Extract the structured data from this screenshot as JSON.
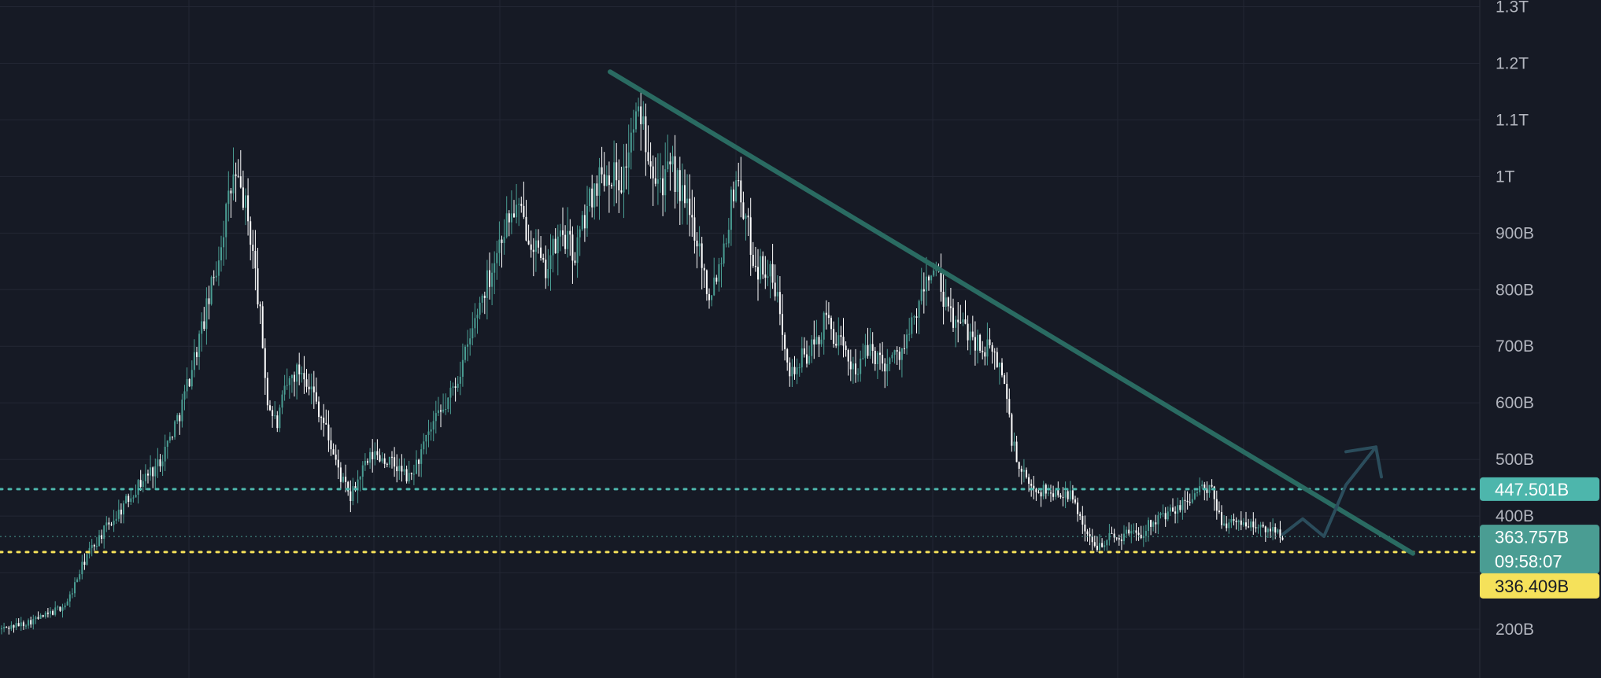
{
  "chart_data": {
    "type": "candlestick",
    "title": "",
    "xlabel": "",
    "ylabel": "",
    "ylim": [
      160000000000,
      1320000000000
    ],
    "grid": true,
    "y_ticks": [
      {
        "value": 200000000000,
        "label": "200B"
      },
      {
        "value": 400000000000,
        "label": "400B"
      },
      {
        "value": 500000000000,
        "label": "500B"
      },
      {
        "value": 600000000000,
        "label": "600B"
      },
      {
        "value": 700000000000,
        "label": "700B"
      },
      {
        "value": 800000000000,
        "label": "800B"
      },
      {
        "value": 900000000000,
        "label": "900B"
      },
      {
        "value": 1000000000000,
        "label": "1T"
      },
      {
        "value": 1100000000000,
        "label": "1.1T"
      },
      {
        "value": 1200000000000,
        "label": "1.2T"
      },
      {
        "value": 1300000000000,
        "label": "1.3T"
      }
    ],
    "price_anchors": [
      [
        0,
        200
      ],
      [
        30,
        210
      ],
      [
        60,
        225
      ],
      [
        85,
        245
      ],
      [
        110,
        330
      ],
      [
        130,
        370
      ],
      [
        150,
        405
      ],
      [
        170,
        445
      ],
      [
        185,
        470
      ],
      [
        200,
        490
      ],
      [
        215,
        535
      ],
      [
        230,
        590
      ],
      [
        245,
        670
      ],
      [
        260,
        750
      ],
      [
        275,
        840
      ],
      [
        285,
        920
      ],
      [
        297,
        1000
      ],
      [
        310,
        960
      ],
      [
        320,
        880
      ],
      [
        330,
        760
      ],
      [
        340,
        600
      ],
      [
        352,
        560
      ],
      [
        362,
        620
      ],
      [
        372,
        650
      ],
      [
        385,
        660
      ],
      [
        400,
        610
      ],
      [
        415,
        550
      ],
      [
        430,
        480
      ],
      [
        445,
        430
      ],
      [
        460,
        480
      ],
      [
        475,
        510
      ],
      [
        490,
        500
      ],
      [
        505,
        485
      ],
      [
        520,
        465
      ],
      [
        535,
        510
      ],
      [
        550,
        560
      ],
      [
        565,
        590
      ],
      [
        580,
        640
      ],
      [
        595,
        700
      ],
      [
        610,
        780
      ],
      [
        625,
        840
      ],
      [
        640,
        910
      ],
      [
        655,
        945
      ],
      [
        665,
        920
      ],
      [
        680,
        880
      ],
      [
        690,
        830
      ],
      [
        700,
        860
      ],
      [
        715,
        900
      ],
      [
        730,
        860
      ],
      [
        745,
        940
      ],
      [
        760,
        1000
      ],
      [
        775,
        1010
      ],
      [
        790,
        990
      ],
      [
        805,
        1090
      ],
      [
        815,
        1110
      ],
      [
        825,
        1040
      ],
      [
        840,
        990
      ],
      [
        855,
        1010
      ],
      [
        870,
        950
      ],
      [
        885,
        900
      ],
      [
        900,
        790
      ],
      [
        915,
        850
      ],
      [
        925,
        920
      ],
      [
        935,
        1005
      ],
      [
        945,
        940
      ],
      [
        960,
        840
      ],
      [
        975,
        840
      ],
      [
        990,
        770
      ],
      [
        1005,
        650
      ],
      [
        1020,
        680
      ],
      [
        1035,
        700
      ],
      [
        1050,
        750
      ],
      [
        1060,
        720
      ],
      [
        1075,
        680
      ],
      [
        1090,
        660
      ],
      [
        1105,
        700
      ],
      [
        1120,
        670
      ],
      [
        1135,
        680
      ],
      [
        1150,
        700
      ],
      [
        1165,
        760
      ],
      [
        1180,
        830
      ],
      [
        1190,
        830
      ],
      [
        1200,
        770
      ],
      [
        1215,
        740
      ],
      [
        1230,
        730
      ],
      [
        1245,
        700
      ],
      [
        1260,
        690
      ],
      [
        1275,
        650
      ],
      [
        1285,
        540
      ],
      [
        1295,
        480
      ],
      [
        1310,
        450
      ],
      [
        1325,
        445
      ],
      [
        1340,
        440
      ],
      [
        1355,
        445
      ],
      [
        1370,
        410
      ],
      [
        1380,
        370
      ],
      [
        1390,
        345
      ],
      [
        1400,
        355
      ],
      [
        1410,
        365
      ],
      [
        1420,
        360
      ],
      [
        1430,
        370
      ],
      [
        1440,
        375
      ],
      [
        1450,
        370
      ],
      [
        1465,
        395
      ],
      [
        1480,
        400
      ],
      [
        1495,
        410
      ],
      [
        1510,
        430
      ],
      [
        1525,
        450
      ],
      [
        1540,
        440
      ],
      [
        1550,
        395
      ],
      [
        1565,
        385
      ],
      [
        1580,
        390
      ],
      [
        1595,
        380
      ],
      [
        1610,
        375
      ],
      [
        1620,
        380
      ],
      [
        1630,
        366
      ]
    ],
    "trendline": {
      "start": [
        775,
        1185
      ],
      "end": [
        1795,
        334
      ]
    },
    "projection": [
      [
        1630,
        368
      ],
      [
        1655,
        395
      ],
      [
        1682,
        364
      ],
      [
        1710,
        455
      ],
      [
        1748,
        522
      ]
    ],
    "horizontal_levels": [
      {
        "value": 447501000000,
        "label": "447.501B",
        "style": "dotted",
        "color": "#4db6ac"
      },
      {
        "value": 336409000000,
        "label": "336.409B",
        "style": "dotted",
        "color": "#f5e15a"
      }
    ],
    "current_price": {
      "value": 363757000000,
      "label": "363.757B",
      "countdown": "09:58:07"
    }
  },
  "colors": {
    "background": "#161a25",
    "grid": "#232734",
    "axis_text": "#b2b5be",
    "candle_up": "#4a9d93",
    "candle_down": "#ffffff",
    "trendline": "#2a6b62",
    "projection": "#2b4d5c",
    "level_green": "#4db6ac",
    "level_yellow": "#f5e15a",
    "price_badge": "#4a9d93"
  }
}
